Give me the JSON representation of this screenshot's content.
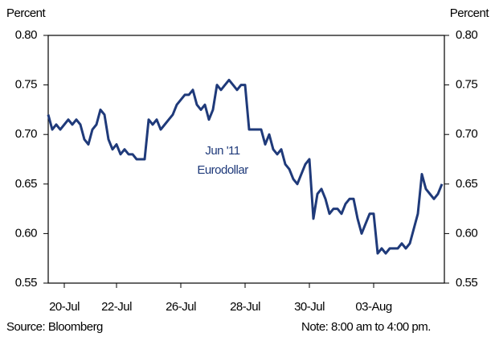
{
  "chart_data": {
    "type": "line",
    "y_label_left": "Percent",
    "y_label_right": "Percent",
    "annotation": [
      "Jun '11",
      "Eurodollar"
    ],
    "source": "Source: Bloomberg",
    "note": "Note: 8:00 am to 4:00 pm.",
    "color": "#1f3a7a",
    "categories": [
      null,
      null,
      null,
      null,
      "20-Jul",
      null,
      null,
      null,
      null,
      null,
      null,
      null,
      null,
      null,
      null,
      null,
      null,
      "22-Jul",
      null,
      null,
      null,
      null,
      null,
      null,
      null,
      null,
      null,
      null,
      null,
      null,
      null,
      null,
      null,
      "26-Jul",
      null,
      null,
      null,
      null,
      null,
      null,
      null,
      null,
      null,
      null,
      null,
      null,
      null,
      null,
      null,
      "28-Jul",
      null,
      null,
      null,
      null,
      null,
      null,
      null,
      null,
      null,
      null,
      null,
      null,
      null,
      null,
      null,
      "30-Jul",
      null,
      null,
      null,
      null,
      null,
      null,
      null,
      null,
      null,
      null,
      null,
      null,
      null,
      null,
      null,
      "03-Aug",
      null,
      null,
      null,
      null,
      null,
      null,
      null,
      null,
      null,
      null,
      null,
      null,
      null,
      null,
      null,
      null,
      null
    ],
    "values": [
      0.72,
      0.705,
      0.71,
      0.705,
      0.71,
      0.715,
      0.71,
      0.715,
      0.71,
      0.695,
      0.69,
      0.705,
      0.71,
      0.725,
      0.72,
      0.695,
      0.685,
      0.69,
      0.68,
      0.685,
      0.68,
      0.68,
      0.675,
      0.675,
      0.675,
      0.715,
      0.71,
      0.715,
      0.705,
      0.71,
      0.715,
      0.72,
      0.73,
      0.735,
      0.74,
      0.74,
      0.745,
      0.73,
      0.725,
      0.73,
      0.715,
      0.725,
      0.75,
      0.745,
      0.75,
      0.755,
      0.75,
      0.745,
      0.75,
      0.75,
      0.705,
      0.705,
      0.705,
      0.705,
      0.69,
      0.7,
      0.685,
      0.68,
      0.685,
      0.67,
      0.665,
      0.655,
      0.65,
      0.66,
      0.67,
      0.675,
      0.615,
      0.64,
      0.645,
      0.635,
      0.62,
      0.625,
      0.625,
      0.62,
      0.63,
      0.635,
      0.635,
      0.615,
      0.6,
      0.61,
      0.62,
      0.62,
      0.58,
      0.585,
      0.58,
      0.585,
      0.585,
      0.585,
      0.59,
      0.585,
      0.59,
      0.605,
      0.62,
      0.66,
      0.645,
      0.64,
      0.635,
      0.64,
      0.65
    ],
    "ylim": [
      0.55,
      0.8
    ],
    "yticks": [
      0.55,
      {
        "value": 0.6,
        "label": "0.60"
      },
      0.65,
      {
        "value": 0.7,
        "label": "0.70"
      },
      0.75,
      {
        "value": 0.8,
        "label": "0.80"
      }
    ],
    "y2lim": [
      0.55,
      0.8
    ],
    "y2ticks": [
      0.55,
      {
        "value": 0.6,
        "label": "0.60"
      },
      0.65,
      {
        "value": 0.7,
        "label": "0.70"
      },
      0.75,
      {
        "value": 0.8,
        "label": "0.80"
      }
    ],
    "grid": false
  }
}
